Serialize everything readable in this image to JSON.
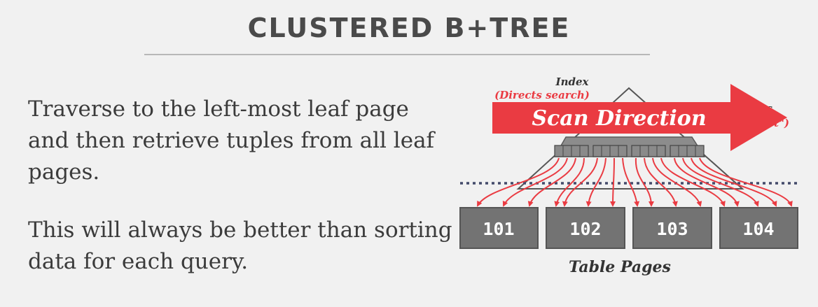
{
  "slide": {
    "title": "CLUSTERED B+TREE",
    "paragraphs": [
      "Traverse to the left-most leaf page and then retrieve tuples from all leaf pages.",
      "This will always be better than sorting data for each query."
    ]
  },
  "diagram": {
    "index_label": "Index",
    "index_sublabel": "(Directs search)",
    "right_label_1": "ies",
    "right_label_2": "e set\")",
    "scan_label": "Scan Direction",
    "table_pages": [
      "101",
      "102",
      "103",
      "104"
    ],
    "table_pages_label": "Table Pages",
    "colors": {
      "arrow_red": "#ea3b42",
      "page_fill": "#737373",
      "page_stroke": "#545454",
      "leaf_fill": "#8a8a8a",
      "dotted_line": "#434a6a"
    }
  }
}
